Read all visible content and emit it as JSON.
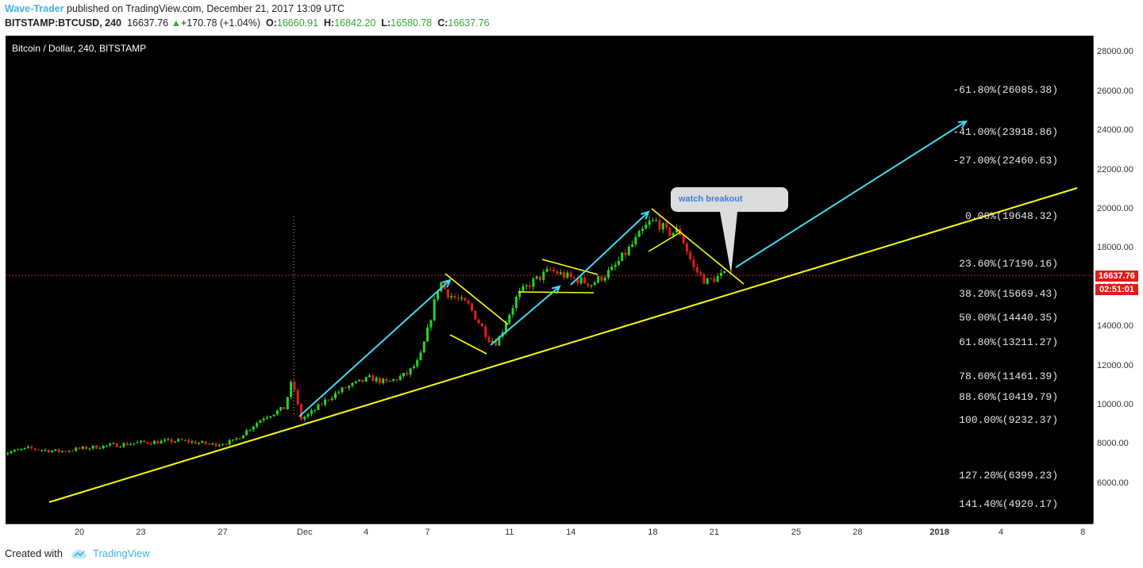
{
  "header": {
    "author": "Wave-Trader",
    "published_text": " published on TradingView.com, December 21, 2017 13:09 UTC",
    "symbol": "BITSTAMP:BTCUSD, 240",
    "last_price": "16637.76",
    "change_arrow": "▲",
    "change": "+170.78 (+1.04%)",
    "o_label": "O:",
    "o_value": "16660.91",
    "h_label": "H:",
    "h_value": "16842.20",
    "l_label": "L:",
    "l_value": "16580.78",
    "c_label": "C:",
    "c_value": "16637.76"
  },
  "footer": {
    "created_with": "Created with",
    "brand": "TradingView"
  },
  "colors": {
    "up_candle": "#22d622",
    "down_candle": "#e11d1d",
    "trend_line": "#ffff00",
    "arrow_line": "#3fd9f2",
    "price_line": "#e21b1b",
    "background": "#000000"
  },
  "chart_data": {
    "type": "candlestick",
    "title": "Bitcoin / Dollar, 240, BITSTAMP",
    "ylim": [
      4200,
      29000
    ],
    "y_ticks": [
      "28000.00",
      "26000.00",
      "24000.00",
      "22000.00",
      "20000.00",
      "18000.00",
      "16000.00",
      "14000.00",
      "12000.00",
      "10000.00",
      "8000.00",
      "6000.00"
    ],
    "y_tick_values": [
      28000,
      26000,
      24000,
      22000,
      20000,
      18000,
      16000,
      14000,
      12000,
      10000,
      8000,
      6000
    ],
    "x_ticks": [
      "20",
      "23",
      "27",
      "Dec",
      "4",
      "7",
      "11",
      "14",
      "18",
      "21",
      "25",
      "28",
      "2018",
      "4",
      "8"
    ],
    "x_tick_days": [
      3,
      6,
      10,
      14,
      17,
      20,
      24,
      27,
      31,
      34,
      38,
      41,
      45,
      48,
      52
    ],
    "current_price": "16637.76",
    "countdown": "02:51:01",
    "fib_levels": [
      {
        "label": "-61.80%(26085.38)",
        "price": 26085.38
      },
      {
        "label": "-41.00%(23918.86)",
        "price": 23918.86
      },
      {
        "label": "-27.00%(22460.63)",
        "price": 22460.63
      },
      {
        "label": "0.00%(19648.32)",
        "price": 19648.32
      },
      {
        "label": "23.60%(17190.16)",
        "price": 17190.16
      },
      {
        "label": "38.20%(15669.43)",
        "price": 15669.43
      },
      {
        "label": "50.00%(14440.35)",
        "price": 14440.35
      },
      {
        "label": "61.80%(13211.27)",
        "price": 13211.27
      },
      {
        "label": "78.60%(11461.39)",
        "price": 11461.39
      },
      {
        "label": "88.60%(10419.79)",
        "price": 10419.79
      },
      {
        "label": "100.00%(9232.37)",
        "price": 9232.37
      },
      {
        "label": "127.20%(6399.23)",
        "price": 6399.23
      },
      {
        "label": "141.40%(4920.17)",
        "price": 4920.17
      }
    ],
    "annotation": "watch breakout",
    "price_path": [
      [
        -1,
        7500
      ],
      [
        0.5,
        7800
      ],
      [
        2,
        7650
      ],
      [
        4,
        7900
      ],
      [
        6,
        8100
      ],
      [
        8,
        8200
      ],
      [
        9.5,
        8000
      ],
      [
        10.5,
        8150
      ],
      [
        12,
        9400
      ],
      [
        13,
        9850
      ],
      [
        13.4,
        11300
      ],
      [
        13.8,
        9300
      ],
      [
        14.3,
        9600
      ],
      [
        15.2,
        10400
      ],
      [
        16,
        10900
      ],
      [
        17.2,
        11400
      ],
      [
        18,
        11150
      ],
      [
        19,
        11600
      ],
      [
        19.6,
        12300
      ],
      [
        20,
        13800
      ],
      [
        20.6,
        16400
      ],
      [
        20.9,
        15800
      ],
      [
        21.3,
        15500
      ],
      [
        22,
        15100
      ],
      [
        23,
        13400
      ],
      [
        23.4,
        13200
      ],
      [
        24,
        14700
      ],
      [
        24.4,
        15600
      ],
      [
        25,
        16200
      ],
      [
        26,
        16900
      ],
      [
        27,
        16500
      ],
      [
        28,
        16200
      ],
      [
        29,
        16900
      ],
      [
        30,
        18200
      ],
      [
        30.8,
        19300
      ],
      [
        31.2,
        19400
      ],
      [
        31.7,
        18800
      ],
      [
        32.3,
        18900
      ],
      [
        33,
        17000
      ],
      [
        33.6,
        16300
      ],
      [
        34.3,
        16600
      ],
      [
        34.6,
        16640
      ]
    ]
  }
}
